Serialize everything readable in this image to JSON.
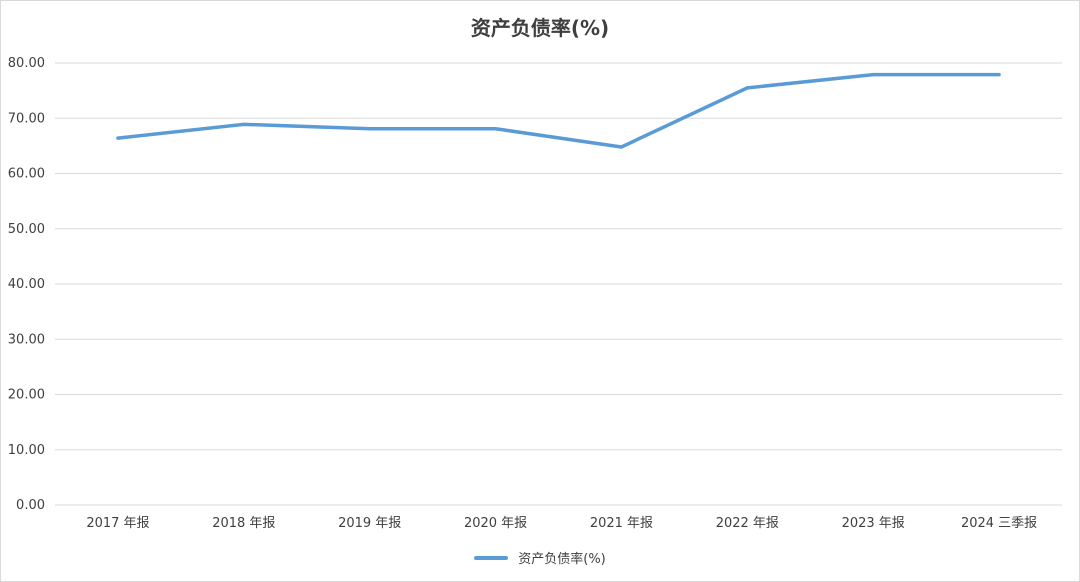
{
  "chart_data": {
    "type": "line",
    "title": "资产负债率(%)",
    "xlabel": "",
    "ylabel": "",
    "categories": [
      "2017 年报",
      "2018 年报",
      "2019 年报",
      "2020 年报",
      "2021 年报",
      "2022 年报",
      "2023 年报",
      "2024 三季报"
    ],
    "series": [
      {
        "name": "资产负债率(%)",
        "color": "#5b9bd5",
        "values": [
          66.4,
          68.9,
          68.1,
          68.1,
          64.8,
          75.5,
          77.9,
          77.9
        ]
      }
    ],
    "ylim": [
      0,
      80
    ],
    "yticks": [
      "0.00",
      "10.00",
      "20.00",
      "30.00",
      "40.00",
      "50.00",
      "60.00",
      "70.00",
      "80.00"
    ],
    "grid": true,
    "legend_position": "bottom"
  }
}
